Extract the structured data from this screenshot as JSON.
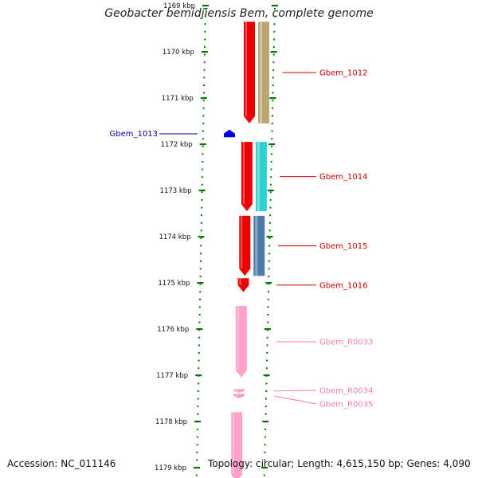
{
  "title": "Geobacter bemidjiensis Bem, complete genome",
  "footer": {
    "accession": "Accession: NC_011146",
    "summary": "Topology: circular; Length: 4,615,150 bp; Genes: 4,090"
  },
  "chart_data": {
    "type": "genome-map",
    "axis": {
      "unit": "kbp",
      "range": [
        1169,
        1179
      ],
      "ticks": [
        {
          "value": 1169,
          "label": "1169 kbp"
        },
        {
          "value": 1170,
          "label": "1170 kbp"
        },
        {
          "value": 1171,
          "label": "1171 kbp"
        },
        {
          "value": 1172,
          "label": "1172 kbp"
        },
        {
          "value": 1173,
          "label": "1173 kbp"
        },
        {
          "value": 1174,
          "label": "1174 kbp"
        },
        {
          "value": 1175,
          "label": "1175 kbp"
        },
        {
          "value": 1176,
          "label": "1176 kbp"
        },
        {
          "value": 1177,
          "label": "1177 kbp"
        },
        {
          "value": 1178,
          "label": "1178 kbp"
        },
        {
          "value": 1179,
          "label": "1179 kbp"
        }
      ]
    },
    "colors": {
      "cds_forward": "#ee0000",
      "rna": "#ffa0c8",
      "reverse_gene": "#0000dd",
      "scale_ticks": "#007700",
      "backbone": "#808080"
    },
    "features": [
      {
        "name": "",
        "type": "CDS",
        "strand": "+",
        "start": 1168.7,
        "end": 1169.15,
        "color": "#ee0000",
        "track_color": ""
      },
      {
        "name": "Gbem_1012",
        "type": "CDS",
        "strand": "+",
        "start": 1169.35,
        "end": 1171.55,
        "color": "#ee0000",
        "track_color": "#b8a870",
        "label_color": "#cc0000"
      },
      {
        "name": "Gbem_1013",
        "type": "CDS",
        "strand": "-",
        "start": 1171.7,
        "end": 1171.85,
        "color": "#0000dd",
        "track_color": "",
        "label_color": "#0000aa"
      },
      {
        "name": "Gbem_1014",
        "type": "CDS",
        "strand": "+",
        "start": 1171.95,
        "end": 1173.45,
        "color": "#ee0000",
        "track_color": "#30d0d0",
        "label_color": "#cc0000"
      },
      {
        "name": "Gbem_1015",
        "type": "CDS",
        "strand": "+",
        "start": 1173.55,
        "end": 1174.85,
        "color": "#ee0000",
        "track_color": "#4d7aa8",
        "label_color": "#cc0000"
      },
      {
        "name": "Gbem_1016",
        "type": "CDS",
        "strand": "+",
        "start": 1174.9,
        "end": 1175.2,
        "color": "#ee0000",
        "track_color": "",
        "label_color": "#cc0000"
      },
      {
        "name": "Gbem_R0033",
        "type": "rRNA",
        "strand": "+",
        "start": 1175.5,
        "end": 1177.05,
        "color": "#ffa0c8",
        "track_color": "",
        "label_color": "#f080b0"
      },
      {
        "name": "Gbem_R0034",
        "type": "tRNA",
        "strand": "+",
        "start": 1177.3,
        "end": 1177.38,
        "color": "#ffa0c8",
        "track_color": "",
        "label_color": "#f080b0"
      },
      {
        "name": "Gbem_R0035",
        "type": "tRNA",
        "strand": "+",
        "start": 1177.4,
        "end": 1177.5,
        "color": "#ffa0c8",
        "track_color": "",
        "label_color": "#f080b0"
      },
      {
        "name": "",
        "type": "rRNA",
        "strand": "+",
        "start": 1177.8,
        "end": 1179.3,
        "color": "#ffa0c8",
        "track_color": "",
        "label_color": "#f080b0"
      }
    ]
  }
}
